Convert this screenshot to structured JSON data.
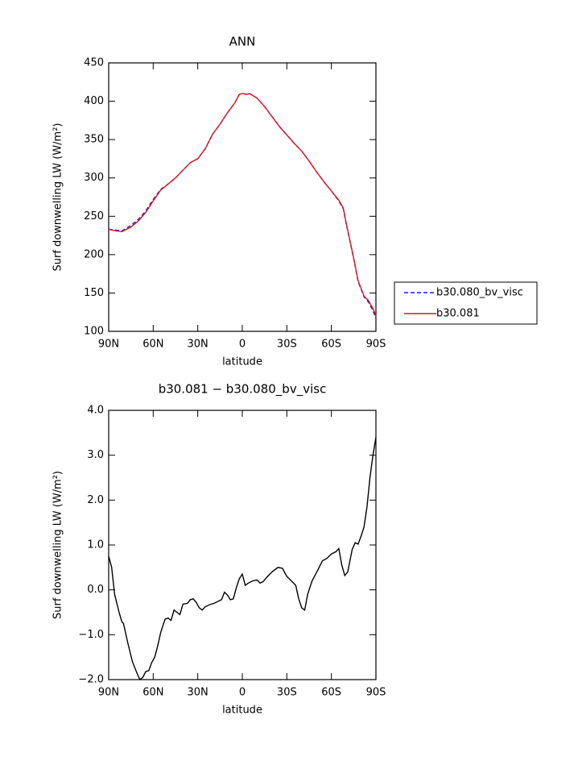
{
  "chart_data": [
    {
      "type": "line",
      "title": "ANN",
      "xlabel": "latitude",
      "ylabel": "Surf downwelling LW (W/m²)",
      "xlim": [
        90,
        -90
      ],
      "xticks": [
        {
          "value": 90,
          "label": "90N"
        },
        {
          "value": 60,
          "label": "60N"
        },
        {
          "value": 30,
          "label": "30N"
        },
        0,
        {
          "value": -30,
          "label": "30S"
        },
        {
          "value": -60,
          "label": "60S"
        },
        {
          "value": -90,
          "label": "90S"
        }
      ],
      "ylim": [
        100,
        450
      ],
      "yticks": [
        100,
        150,
        200,
        250,
        300,
        350,
        400,
        450
      ],
      "legend": "right",
      "x": [
        90,
        85,
        81,
        75,
        70,
        65,
        60,
        55,
        50,
        45,
        40,
        35,
        30,
        25,
        20,
        15,
        10,
        5,
        2,
        0,
        -3,
        -5,
        -10,
        -15,
        -20,
        -25,
        -30,
        -35,
        -40,
        -45,
        -50,
        -55,
        -60,
        -65,
        -68,
        -70,
        -75,
        -78,
        -82,
        -85,
        -88,
        -90
      ],
      "series": [
        {
          "name": "b30.080_bv_visc",
          "color": "#1a1ad6",
          "linestyle": "dashed",
          "values": [
            233,
            232,
            231,
            238,
            246,
            257,
            272,
            285,
            292,
            300,
            310,
            320,
            325,
            338,
            357,
            370,
            385,
            398,
            409,
            410,
            409,
            410,
            404,
            393,
            380,
            367,
            356,
            345,
            335,
            322,
            308,
            295,
            283,
            270,
            260,
            240,
            195,
            165,
            145,
            138,
            127,
            117
          ]
        },
        {
          "name": "b30.081",
          "color": "#e0141e",
          "linestyle": "solid",
          "values": [
            233,
            231,
            230,
            236,
            244,
            255,
            270,
            284,
            292,
            300,
            310,
            320,
            325,
            338,
            357,
            370,
            385,
            398,
            409,
            410,
            409,
            410,
            404,
            393,
            380,
            367,
            356,
            345,
            335,
            322,
            308,
            295,
            283,
            271,
            261,
            241,
            196,
            166,
            146,
            140,
            130,
            120
          ]
        }
      ]
    },
    {
      "type": "line",
      "title": "b30.081 − b30.080_bv_visc",
      "xlabel": "latitude",
      "ylabel": "Surf downwelling LW (W/m²)",
      "xlim": [
        90,
        -90
      ],
      "xticks": [
        {
          "value": 90,
          "label": "90N"
        },
        {
          "value": 60,
          "label": "60N"
        },
        {
          "value": 30,
          "label": "30N"
        },
        0,
        {
          "value": -30,
          "label": "30S"
        },
        {
          "value": -60,
          "label": "60S"
        },
        {
          "value": -90,
          "label": "90S"
        }
      ],
      "ylim": [
        -2,
        4
      ],
      "yticks": [
        {
          "value": -2,
          "label": "−2.0"
        },
        {
          "value": -1,
          "label": "−1.0"
        },
        {
          "value": 0,
          "label": "0.0"
        },
        {
          "value": 1,
          "label": "1.0"
        },
        {
          "value": 2,
          "label": "2.0"
        },
        {
          "value": 3,
          "label": "3.0"
        },
        {
          "value": 4,
          "label": "4.0"
        }
      ],
      "x": [
        90,
        88,
        86,
        83,
        81,
        80,
        77,
        74,
        71,
        69,
        67,
        65,
        63,
        61,
        59,
        57,
        55,
        52,
        50,
        48,
        46,
        44,
        42,
        40,
        37,
        35,
        33,
        31,
        29,
        27,
        25,
        22,
        19,
        16,
        14,
        12,
        10,
        8,
        6,
        4,
        2,
        0,
        -2,
        -4,
        -7,
        -10,
        -12,
        -14,
        -17,
        -20,
        -24,
        -27,
        -30,
        -33,
        -36,
        -38,
        -40,
        -42,
        -44,
        -47,
        -51,
        -54,
        -57,
        -60,
        -63,
        -65,
        -67,
        -69,
        -71,
        -74,
        -76,
        -78,
        -80,
        -82,
        -84,
        -86,
        -88,
        -90
      ],
      "series": [
        {
          "color": "#000000",
          "linestyle": "solid",
          "values": [
            0.75,
            0.5,
            -0.1,
            -0.5,
            -0.72,
            -0.75,
            -1.2,
            -1.6,
            -1.85,
            -2.0,
            -1.95,
            -1.82,
            -1.8,
            -1.62,
            -1.5,
            -1.25,
            -0.95,
            -0.65,
            -0.63,
            -0.68,
            -0.45,
            -0.5,
            -0.55,
            -0.32,
            -0.3,
            -0.22,
            -0.2,
            -0.28,
            -0.4,
            -0.45,
            -0.38,
            -0.33,
            -0.3,
            -0.25,
            -0.22,
            -0.05,
            -0.12,
            -0.22,
            -0.2,
            0.05,
            0.25,
            0.35,
            0.1,
            0.15,
            0.2,
            0.22,
            0.15,
            0.18,
            0.3,
            0.4,
            0.5,
            0.48,
            0.3,
            0.2,
            0.1,
            -0.2,
            -0.4,
            -0.45,
            -0.1,
            0.2,
            0.45,
            0.65,
            0.7,
            0.8,
            0.85,
            0.92,
            0.55,
            0.32,
            0.4,
            0.9,
            1.05,
            1.02,
            1.2,
            1.4,
            1.85,
            2.5,
            3.0,
            3.4
          ]
        }
      ]
    }
  ]
}
